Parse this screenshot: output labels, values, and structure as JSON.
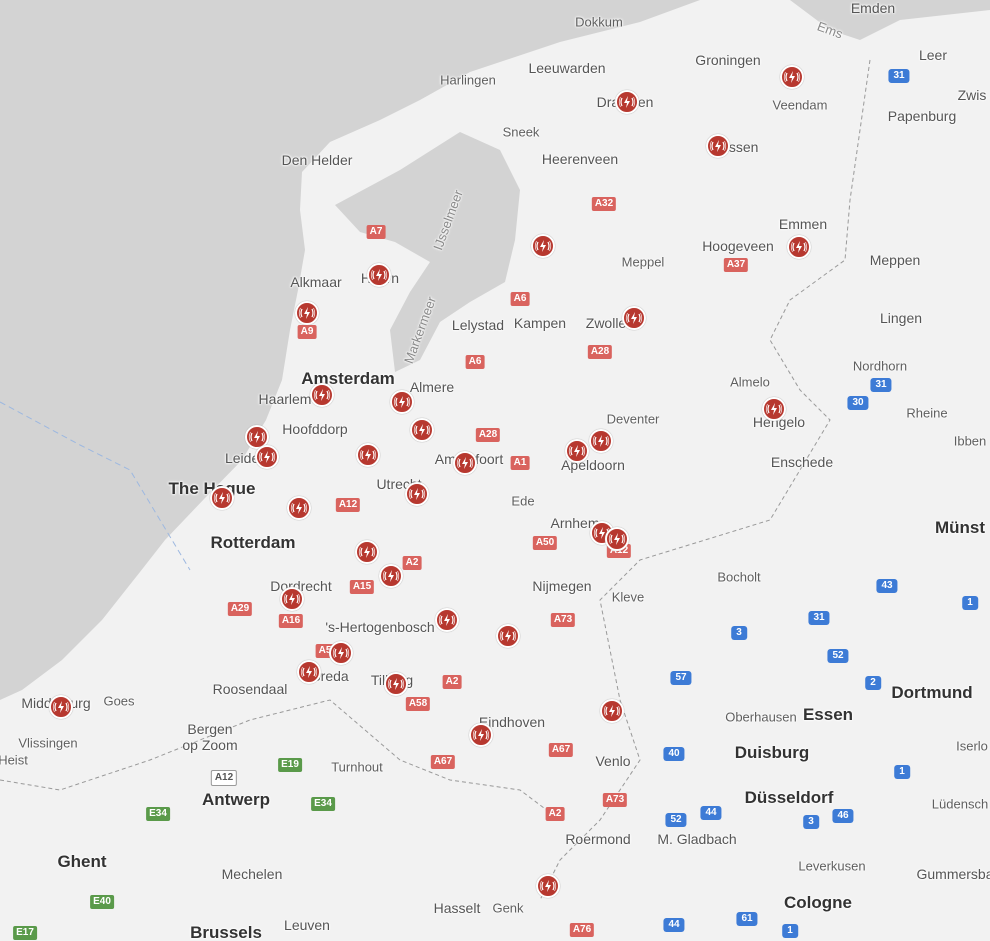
{
  "map": {
    "colors": {
      "land": "#f2f2f2",
      "water": "#d3d3d3",
      "marker": "#b7382f",
      "a_road": "#d9635e",
      "e_road": "#5a9a4a",
      "german_road": "#3d7bd6"
    },
    "marker_icon": "ev-charging-station-icon",
    "marker_count": 35,
    "labels": [
      "Dokkum",
      "Emden",
      "Leer",
      "Zwis",
      "Groningen",
      "Harlingen",
      "Leeuwarden",
      "Veendam",
      "Papenburg",
      "Sneek",
      "Heerenveen",
      "Den Helder",
      "Drachten",
      "Assen",
      "Hoogeveen",
      "Emmen",
      "Meppel",
      "Meppen",
      "Alkmaar",
      "Hoorn",
      "Lelystad",
      "Kampen",
      "Zwolle",
      "Lingen",
      "Amsterdam",
      "Almere",
      "Haarlem",
      "Hoofddorp",
      "Leiden",
      "Amersfoort",
      "Apeldoorn",
      "Deventer",
      "Almelo",
      "Hengelo",
      "Nordhorn",
      "Rheine",
      "Ibben",
      "Enschede",
      "The Hague",
      "Utrecht",
      "Ede",
      "Arnhem",
      "Münst",
      "Rotterdam",
      "Dordrecht",
      "Nijmegen",
      "Kleve",
      "Bocholt",
      "'s-Hertogenbosch",
      "Roosendaal",
      "Breda",
      "Tilburg",
      "Dortmund",
      "Middelburg",
      "Goes",
      "Bergen",
      "op Zoom",
      "Vlissingen",
      "Eindhoven",
      "Oberhausen",
      "Essen",
      "Duisburg",
      "Iserlo",
      "Heist",
      "Turnhout",
      "Venlo",
      "Antwerp",
      "Düsseldorf",
      "Lüdensch",
      "Roermond",
      "M. Gladbach",
      "Ghent",
      "Mechelen",
      "Leverkusen",
      "Gummersba",
      "Hasselt",
      "Genk",
      "Cologne",
      "Leuven",
      "Brussels",
      "IJsselmeer",
      "Markermeer",
      "Ems"
    ],
    "shields": [
      {
        "label": "A7",
        "type": "red"
      },
      {
        "label": "A32",
        "type": "red"
      },
      {
        "label": "A37",
        "type": "red"
      },
      {
        "label": "A6",
        "type": "red"
      },
      {
        "label": "A6",
        "type": "red"
      },
      {
        "label": "A9",
        "type": "red"
      },
      {
        "label": "A28",
        "type": "red"
      },
      {
        "label": "A28",
        "type": "red"
      },
      {
        "label": "A1",
        "type": "red"
      },
      {
        "label": "A12",
        "type": "red"
      },
      {
        "label": "A50",
        "type": "red"
      },
      {
        "label": "A12",
        "type": "red"
      },
      {
        "label": "A2",
        "type": "red"
      },
      {
        "label": "A15",
        "type": "red"
      },
      {
        "label": "A29",
        "type": "red"
      },
      {
        "label": "A16",
        "type": "red"
      },
      {
        "label": "A73",
        "type": "red"
      },
      {
        "label": "A58",
        "type": "red"
      },
      {
        "label": "A2",
        "type": "red"
      },
      {
        "label": "A5",
        "type": "red"
      },
      {
        "label": "A67",
        "type": "red"
      },
      {
        "label": "A67",
        "type": "red"
      },
      {
        "label": "A73",
        "type": "red"
      },
      {
        "label": "A2",
        "type": "red"
      },
      {
        "label": "A76",
        "type": "red"
      },
      {
        "label": "A12",
        "type": "white"
      },
      {
        "label": "E19",
        "type": "green"
      },
      {
        "label": "E34",
        "type": "green"
      },
      {
        "label": "E34",
        "type": "green"
      },
      {
        "label": "E40",
        "type": "green"
      },
      {
        "label": "E17",
        "type": "green"
      },
      {
        "label": "31",
        "type": "blue"
      },
      {
        "label": "31",
        "type": "blue"
      },
      {
        "label": "30",
        "type": "blue"
      },
      {
        "label": "43",
        "type": "blue"
      },
      {
        "label": "31",
        "type": "blue"
      },
      {
        "label": "1",
        "type": "blue"
      },
      {
        "label": "3",
        "type": "blue"
      },
      {
        "label": "52",
        "type": "blue"
      },
      {
        "label": "2",
        "type": "blue"
      },
      {
        "label": "57",
        "type": "blue"
      },
      {
        "label": "40",
        "type": "blue"
      },
      {
        "label": "1",
        "type": "blue"
      },
      {
        "label": "52",
        "type": "blue"
      },
      {
        "label": "44",
        "type": "blue"
      },
      {
        "label": "3",
        "type": "blue"
      },
      {
        "label": "46",
        "type": "blue"
      },
      {
        "label": "44",
        "type": "blue"
      },
      {
        "label": "61",
        "type": "blue"
      },
      {
        "label": "1",
        "type": "blue"
      }
    ]
  }
}
